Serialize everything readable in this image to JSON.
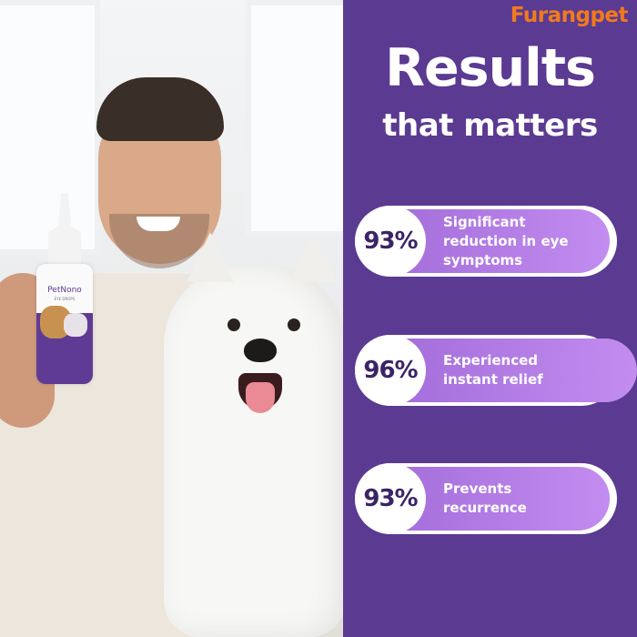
{
  "brand": {
    "logo": "Furangpet",
    "color": "#f07a1e"
  },
  "headline": {
    "line1": "Results",
    "line2": "that matters"
  },
  "product": {
    "name": "PetNono",
    "subtitle": "EYE DROPS"
  },
  "stats": [
    {
      "percent": "93%",
      "value": 93,
      "label": "Significant reduction in eye symptoms"
    },
    {
      "percent": "96%",
      "value": 96,
      "label": "Experienced instant relief"
    },
    {
      "percent": "93%",
      "value": 93,
      "label": "Prevents recurrence"
    }
  ],
  "colors": {
    "panel": "#5b3a92",
    "fill": "#b07ee6",
    "text_dark": "#3b2466"
  }
}
